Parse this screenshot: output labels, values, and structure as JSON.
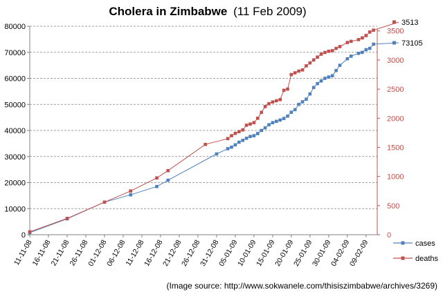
{
  "chart_data": {
    "type": "line",
    "title_main": "Cholera in Zimbabwe",
    "title_date": "(11 Feb 2009)",
    "source": "(Image source: http://www.sokwanele.com/thisiszimbabwe/archives/3269)",
    "x_ticks": [
      "11-11-08",
      "16-11-08",
      "21-11-08",
      "26-11-08",
      "01-12-08",
      "06-12-08",
      "11-12-08",
      "16-12-08",
      "21-12-08",
      "26-12-08",
      "31-12-08",
      "05-01-09",
      "10-01-09",
      "15-01-09",
      "20-01-09",
      "25-01-09",
      "30-01-09",
      "04-02-09",
      "09-02-09"
    ],
    "xlim": [
      "2008-11-11",
      "2009-02-12"
    ],
    "y_left": {
      "ticks": [
        "0",
        "10000",
        "20000",
        "30000",
        "40000",
        "50000",
        "60000",
        "70000",
        "80000"
      ],
      "values": [
        0,
        10000,
        20000,
        30000,
        40000,
        50000,
        60000,
        70000,
        80000
      ],
      "ylim": [
        0,
        80000
      ]
    },
    "y_right": {
      "ticks": [
        "0",
        "500",
        "1000",
        "1500",
        "2000",
        "2500",
        "3000",
        "3500"
      ],
      "values": [
        0,
        500,
        1000,
        1500,
        2000,
        2500,
        3000,
        3500
      ],
      "ylim": [
        0,
        3580
      ]
    },
    "grid": true,
    "legend_position": "bottom-right",
    "series": [
      {
        "name": "cases",
        "axis": "left",
        "color": "#4f81bd",
        "end_label": "73105",
        "points": [
          [
            "2008-11-11",
            800
          ],
          [
            "2008-11-21",
            6100
          ],
          [
            "2008-12-01",
            12500
          ],
          [
            "2008-12-08",
            15300
          ],
          [
            "2008-12-15",
            18500
          ],
          [
            "2008-12-18",
            20900
          ],
          [
            "2008-12-31",
            31000
          ],
          [
            "2009-01-03",
            33000
          ],
          [
            "2009-01-04",
            33600
          ],
          [
            "2009-01-05",
            34500
          ],
          [
            "2009-01-06",
            35500
          ],
          [
            "2009-01-07",
            36200
          ],
          [
            "2009-01-08",
            37000
          ],
          [
            "2009-01-09",
            37700
          ],
          [
            "2009-01-10",
            38000
          ],
          [
            "2009-01-11",
            38800
          ],
          [
            "2009-01-12",
            40000
          ],
          [
            "2009-01-13",
            41000
          ],
          [
            "2009-01-14",
            42200
          ],
          [
            "2009-01-15",
            43000
          ],
          [
            "2009-01-16",
            43500
          ],
          [
            "2009-01-17",
            44000
          ],
          [
            "2009-01-18",
            44600
          ],
          [
            "2009-01-19",
            45500
          ],
          [
            "2009-01-20",
            47000
          ],
          [
            "2009-01-21",
            48000
          ],
          [
            "2009-01-22",
            50000
          ],
          [
            "2009-01-23",
            51000
          ],
          [
            "2009-01-24",
            52000
          ],
          [
            "2009-01-25",
            54000
          ],
          [
            "2009-01-26",
            56500
          ],
          [
            "2009-01-27",
            58000
          ],
          [
            "2009-01-28",
            59000
          ],
          [
            "2009-01-29",
            60000
          ],
          [
            "2009-01-30",
            60500
          ],
          [
            "2009-01-31",
            61000
          ],
          [
            "2009-02-01",
            63000
          ],
          [
            "2009-02-02",
            65000
          ],
          [
            "2009-02-04",
            67500
          ],
          [
            "2009-02-05",
            68500
          ],
          [
            "2009-02-07",
            69600
          ],
          [
            "2009-02-08",
            70000
          ],
          [
            "2009-02-09",
            71000
          ],
          [
            "2009-02-10",
            71500
          ],
          [
            "2009-02-11",
            73105
          ]
        ]
      },
      {
        "name": "deaths",
        "axis": "right",
        "color": "#c0504d",
        "end_label": "3513",
        "points": [
          [
            "2008-11-11",
            50
          ],
          [
            "2008-11-21",
            280
          ],
          [
            "2008-12-01",
            560
          ],
          [
            "2008-12-08",
            750
          ],
          [
            "2008-12-15",
            975
          ],
          [
            "2008-12-18",
            1100
          ],
          [
            "2008-12-28",
            1550
          ],
          [
            "2009-01-03",
            1650
          ],
          [
            "2009-01-04",
            1700
          ],
          [
            "2009-01-05",
            1740
          ],
          [
            "2009-01-06",
            1770
          ],
          [
            "2009-01-07",
            1800
          ],
          [
            "2009-01-08",
            1880
          ],
          [
            "2009-01-09",
            1900
          ],
          [
            "2009-01-10",
            1925
          ],
          [
            "2009-01-11",
            2000
          ],
          [
            "2009-01-12",
            2100
          ],
          [
            "2009-01-13",
            2200
          ],
          [
            "2009-01-14",
            2250
          ],
          [
            "2009-01-15",
            2280
          ],
          [
            "2009-01-16",
            2300
          ],
          [
            "2009-01-17",
            2320
          ],
          [
            "2009-01-18",
            2480
          ],
          [
            "2009-01-19",
            2500
          ],
          [
            "2009-01-20",
            2750
          ],
          [
            "2009-01-21",
            2780
          ],
          [
            "2009-01-22",
            2810
          ],
          [
            "2009-01-23",
            2830
          ],
          [
            "2009-01-24",
            2900
          ],
          [
            "2009-01-25",
            2950
          ],
          [
            "2009-01-26",
            3000
          ],
          [
            "2009-01-27",
            3050
          ],
          [
            "2009-01-28",
            3100
          ],
          [
            "2009-01-29",
            3130
          ],
          [
            "2009-01-30",
            3150
          ],
          [
            "2009-01-31",
            3160
          ],
          [
            "2009-02-01",
            3200
          ],
          [
            "2009-02-02",
            3230
          ],
          [
            "2009-02-04",
            3300
          ],
          [
            "2009-02-05",
            3320
          ],
          [
            "2009-02-07",
            3350
          ],
          [
            "2009-02-08",
            3380
          ],
          [
            "2009-02-09",
            3420
          ],
          [
            "2009-02-10",
            3480
          ],
          [
            "2009-02-11",
            3513
          ]
        ]
      }
    ]
  }
}
